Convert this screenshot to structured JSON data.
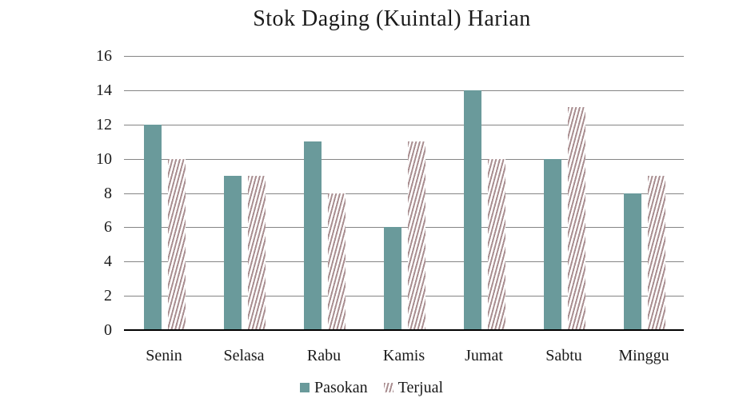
{
  "chart_data": {
    "type": "bar",
    "title": "Stok Daging (Kuintal) Harian",
    "categories": [
      "Senin",
      "Selasa",
      "Rabu",
      "Kamis",
      "Jumat",
      "Sabtu",
      "Minggu"
    ],
    "series": [
      {
        "name": "Pasokan",
        "values": [
          12,
          9,
          11,
          6,
          14,
          10,
          8
        ],
        "style": "solid",
        "color": "#6a9a9b"
      },
      {
        "name": "Terjual",
        "values": [
          10,
          9,
          8,
          11,
          10,
          13,
          9
        ],
        "style": "striped",
        "color": "#a98e90"
      }
    ],
    "xlabel": "",
    "ylabel": "",
    "ylim": [
      0,
      16
    ],
    "yticks": [
      0,
      2,
      4,
      6,
      8,
      10,
      12,
      14,
      16
    ],
    "grid": "horizontal",
    "legend_position": "bottom",
    "colors": {
      "grid_line": "#858585",
      "axis_line": "#000000",
      "text": "#1a1a1a",
      "background": "#ffffff",
      "stripe_background": "#ffffff"
    }
  }
}
